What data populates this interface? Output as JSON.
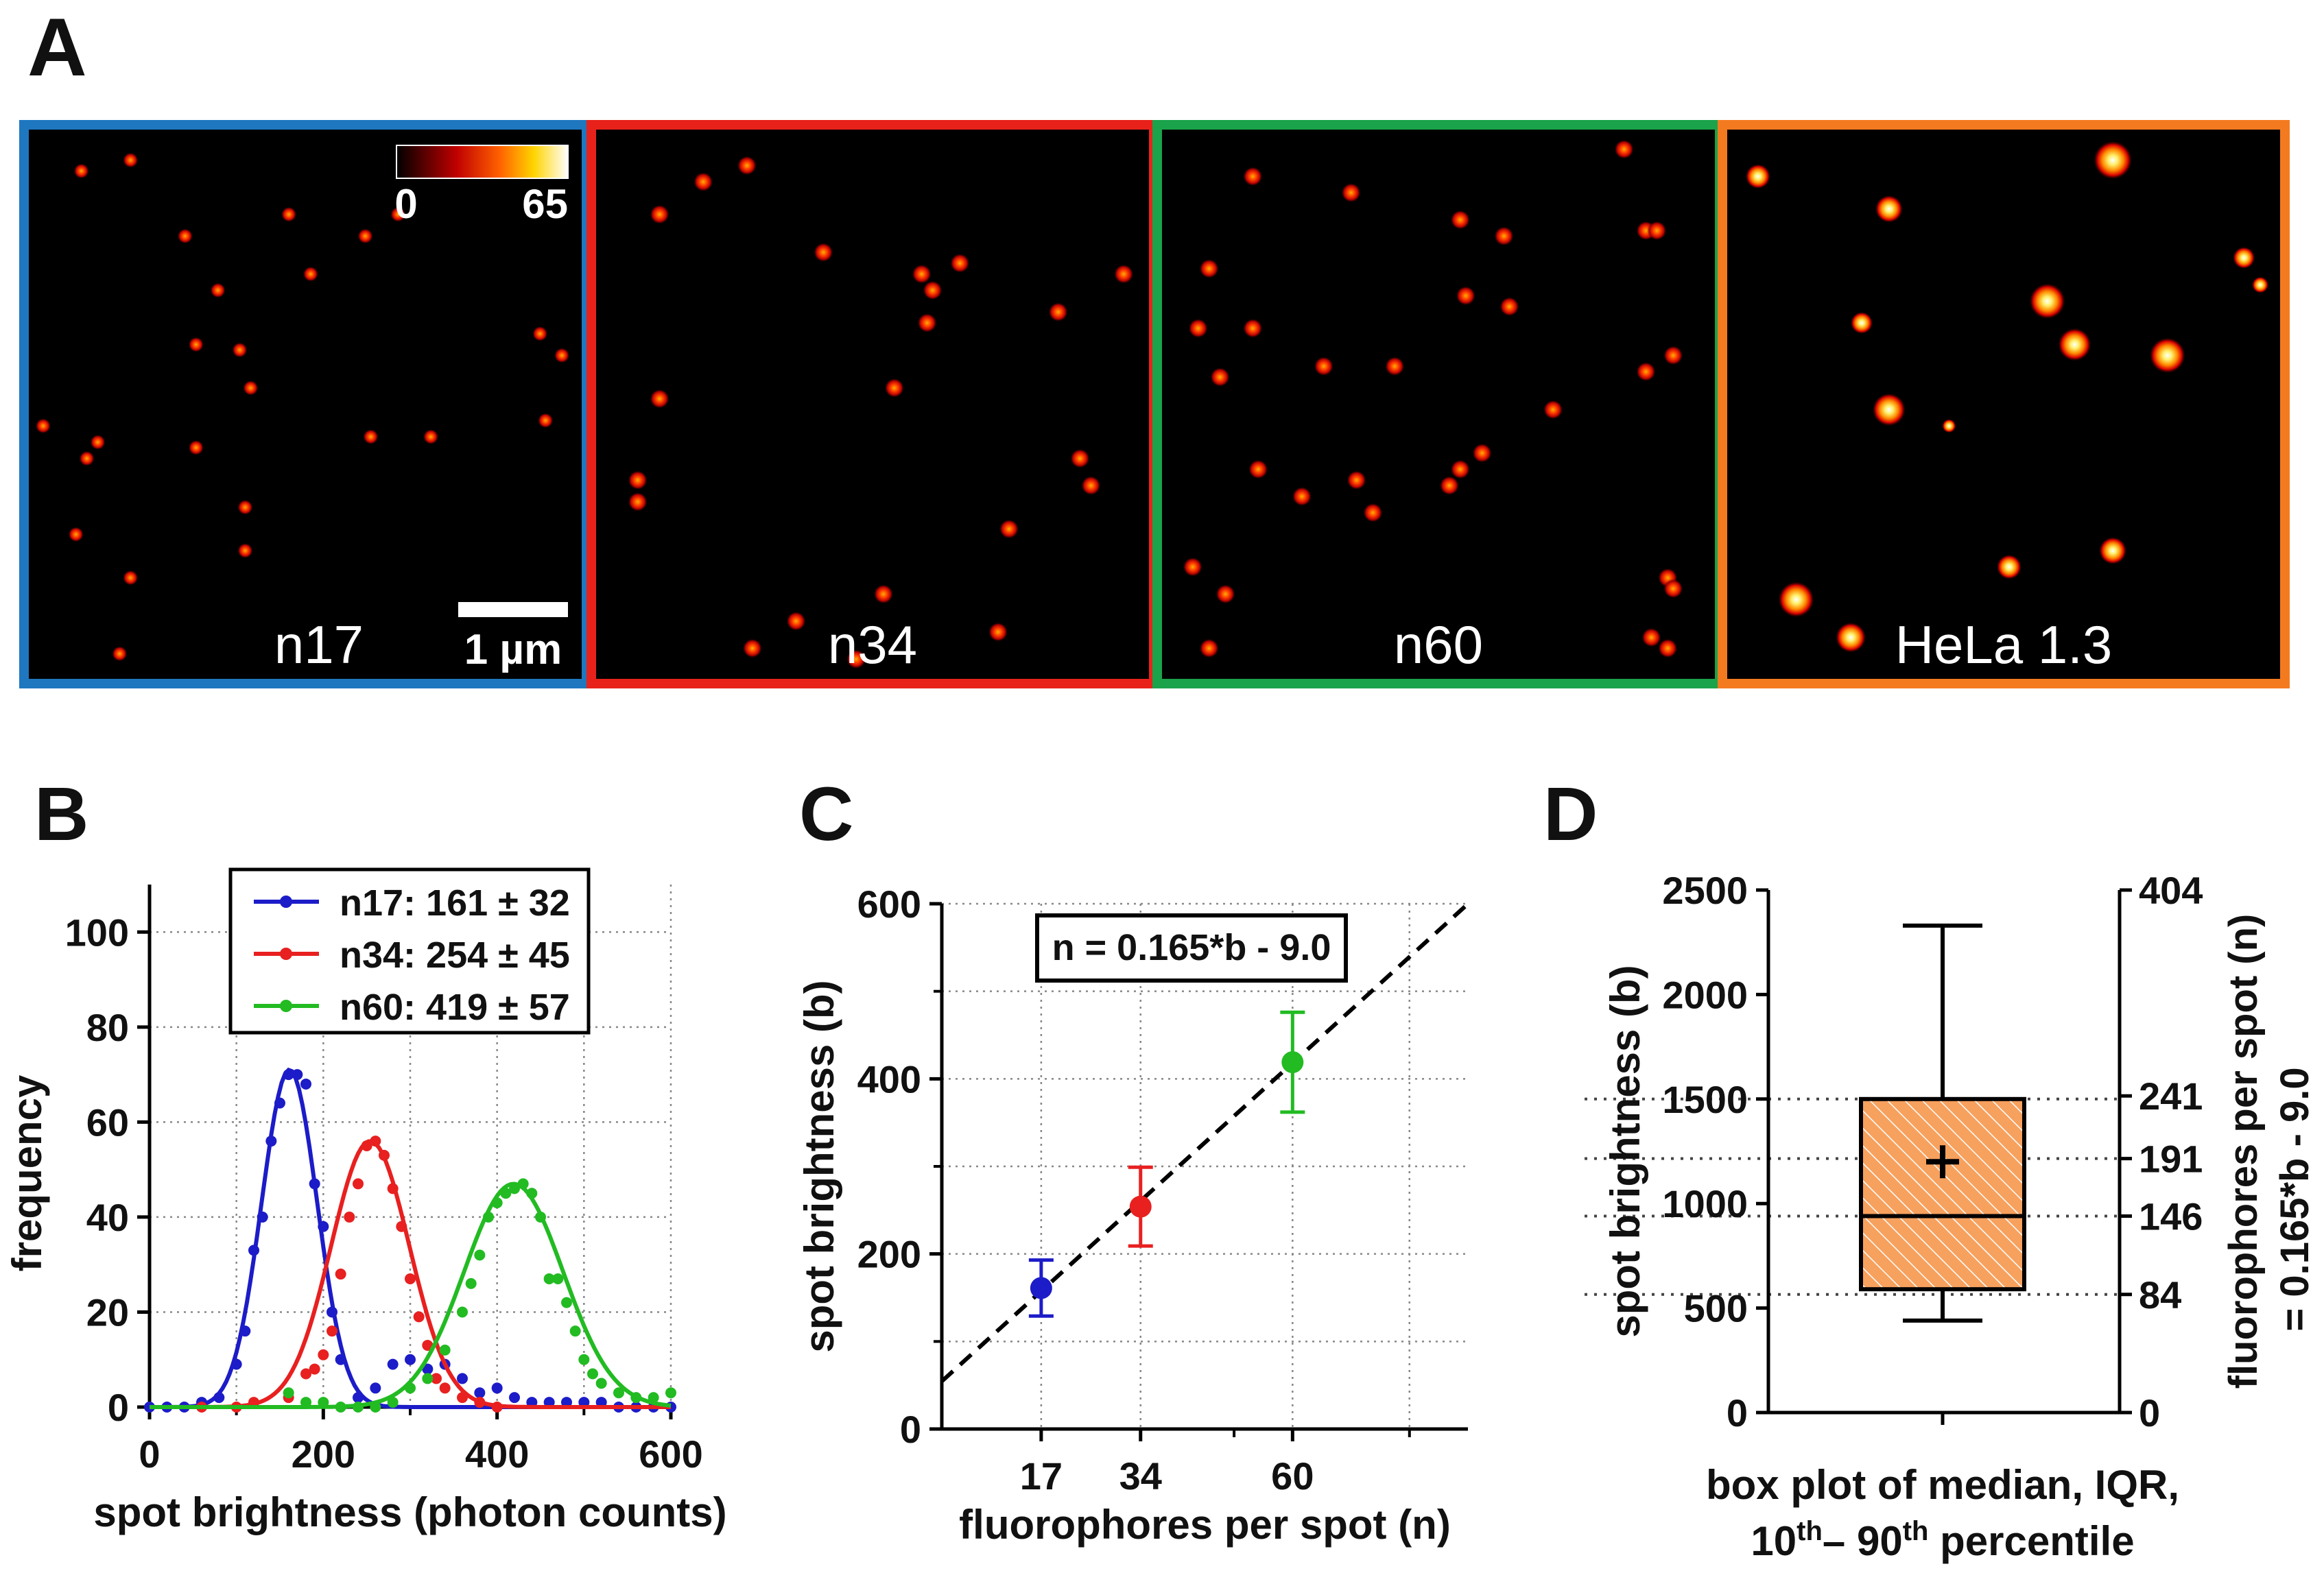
{
  "panel_labels": {
    "a": "A",
    "b": "B",
    "c": "C",
    "d": "D"
  },
  "colors": {
    "blue_frame": "#1f77c0",
    "red_frame": "#e8221b",
    "green_frame": "#1aa34a",
    "orange_frame": "#f47a20",
    "n17": "#1c1cc8",
    "n34": "#e82020",
    "n60": "#22bb22",
    "box_fill": "#f7a15e",
    "box_hatch": "#ffffff"
  },
  "microscopy": {
    "colorbar": {
      "min_label": "0",
      "max_label": "65"
    },
    "scalebar_label": "1 µm",
    "panels": [
      {
        "label": "n17",
        "frame_color": "#1f77c0"
      },
      {
        "label": "n34",
        "frame_color": "#e8221b"
      },
      {
        "label": "n60",
        "frame_color": "#1aa34a"
      },
      {
        "label": "HeLa 1.3",
        "frame_color": "#f47a20"
      }
    ]
  },
  "chart_data": [
    {
      "id": "B",
      "type": "line",
      "xlabel": "spot brightness (photon counts)",
      "ylabel": "frequency",
      "xlim": [
        0,
        600
      ],
      "ylim": [
        0,
        110
      ],
      "xticks": [
        0,
        200,
        400,
        600
      ],
      "yticks": [
        0,
        20,
        40,
        60,
        80,
        100
      ],
      "grid": true,
      "legend_position": "top-right",
      "series": [
        {
          "name": "n17: 161 ± 32",
          "color": "#1c1cc8",
          "mean": 161,
          "sd": 32,
          "amp": 71,
          "points": [
            [
              0,
              0
            ],
            [
              20,
              0
            ],
            [
              40,
              0
            ],
            [
              60,
              1
            ],
            [
              80,
              2
            ],
            [
              100,
              9
            ],
            [
              110,
              16
            ],
            [
              120,
              33
            ],
            [
              130,
              40
            ],
            [
              140,
              56
            ],
            [
              150,
              64
            ],
            [
              160,
              70
            ],
            [
              170,
              70
            ],
            [
              180,
              68
            ],
            [
              190,
              47
            ],
            [
              200,
              38
            ],
            [
              210,
              20
            ],
            [
              220,
              10
            ],
            [
              240,
              2
            ],
            [
              260,
              4
            ],
            [
              280,
              9
            ],
            [
              300,
              10
            ],
            [
              320,
              8
            ],
            [
              340,
              9
            ],
            [
              360,
              6
            ],
            [
              380,
              3
            ],
            [
              400,
              4
            ],
            [
              420,
              2
            ],
            [
              440,
              1
            ],
            [
              460,
              1
            ],
            [
              480,
              1
            ],
            [
              500,
              1
            ],
            [
              520,
              1
            ],
            [
              540,
              0
            ],
            [
              560,
              0
            ],
            [
              580,
              0
            ],
            [
              600,
              0
            ]
          ]
        },
        {
          "name": "n34: 254 ± 45",
          "color": "#e82020",
          "mean": 254,
          "sd": 45,
          "amp": 56,
          "points": [
            [
              60,
              0
            ],
            [
              100,
              0
            ],
            [
              120,
              1
            ],
            [
              160,
              2
            ],
            [
              180,
              7
            ],
            [
              190,
              8
            ],
            [
              200,
              11
            ],
            [
              210,
              16
            ],
            [
              220,
              28
            ],
            [
              230,
              40
            ],
            [
              240,
              47
            ],
            [
              250,
              55
            ],
            [
              260,
              56
            ],
            [
              270,
              53
            ],
            [
              280,
              46
            ],
            [
              290,
              38
            ],
            [
              300,
              27
            ],
            [
              310,
              19
            ],
            [
              320,
              13
            ],
            [
              330,
              6
            ],
            [
              340,
              4
            ],
            [
              360,
              2
            ],
            [
              380,
              1
            ],
            [
              400,
              0
            ]
          ]
        },
        {
          "name": "n60: 419 ± 57",
          "color": "#22bb22",
          "mean": 419,
          "sd": 57,
          "amp": 47,
          "points": [
            [
              160,
              3
            ],
            [
              180,
              1
            ],
            [
              200,
              1
            ],
            [
              220,
              0
            ],
            [
              240,
              0
            ],
            [
              260,
              0
            ],
            [
              280,
              1
            ],
            [
              300,
              4
            ],
            [
              320,
              6
            ],
            [
              340,
              12
            ],
            [
              360,
              20
            ],
            [
              370,
              26
            ],
            [
              380,
              32
            ],
            [
              390,
              40
            ],
            [
              400,
              43
            ],
            [
              410,
              45
            ],
            [
              420,
              46
            ],
            [
              430,
              47
            ],
            [
              440,
              45
            ],
            [
              450,
              40
            ],
            [
              460,
              27
            ],
            [
              470,
              27
            ],
            [
              480,
              22
            ],
            [
              490,
              16
            ],
            [
              500,
              10
            ],
            [
              510,
              7
            ],
            [
              520,
              5
            ],
            [
              540,
              3
            ],
            [
              560,
              2
            ],
            [
              580,
              2
            ],
            [
              600,
              3
            ]
          ]
        }
      ]
    },
    {
      "id": "C",
      "type": "scatter",
      "xlabel": "fluorophores per spot (n)",
      "ylabel": "spot brightness (b)",
      "xlim": [
        0,
        90
      ],
      "ylim": [
        0,
        600
      ],
      "xticks": [
        17,
        34,
        60
      ],
      "yticks": [
        0,
        200,
        400,
        600
      ],
      "grid": true,
      "annotation": "n = 0.165*b - 9.0",
      "fit_line": {
        "slope": 6.06,
        "intercept": 54.5,
        "style": "dashed"
      },
      "points": [
        {
          "x": 17,
          "y": 161,
          "err": 32,
          "color": "#1c1cc8"
        },
        {
          "x": 34,
          "y": 254,
          "err": 45,
          "color": "#e82020"
        },
        {
          "x": 60,
          "y": 419,
          "err": 57,
          "color": "#22bb22"
        }
      ]
    },
    {
      "id": "D",
      "type": "box",
      "ylabel": "spot brightness (b)",
      "y2label_line1": "fluorophores per spot (n)",
      "y2label_line2": "= 0.165*b - 9.0",
      "ylim": [
        0,
        2500
      ],
      "yticks": [
        0,
        500,
        1000,
        1500,
        2000,
        2500
      ],
      "y2_ticks": [
        {
          "b": 0,
          "label": "0"
        },
        {
          "b": 565,
          "label": "84"
        },
        {
          "b": 940,
          "label": "146"
        },
        {
          "b": 1215,
          "label": "191"
        },
        {
          "b": 1515,
          "label": "241"
        },
        {
          "b": 2500,
          "label": "404"
        }
      ],
      "box": {
        "whisker_low": 440,
        "q1": 590,
        "median": 940,
        "mean": 1200,
        "q3": 1500,
        "whisker_high": 2330
      },
      "xlabel_line1": "box plot of median, IQR,",
      "xlabel_p10": "10",
      "xlabel_th": "th",
      "xlabel_dash": "– 90",
      "xlabel_p90th": "th",
      "xlabel_tail": " percentile"
    }
  ]
}
